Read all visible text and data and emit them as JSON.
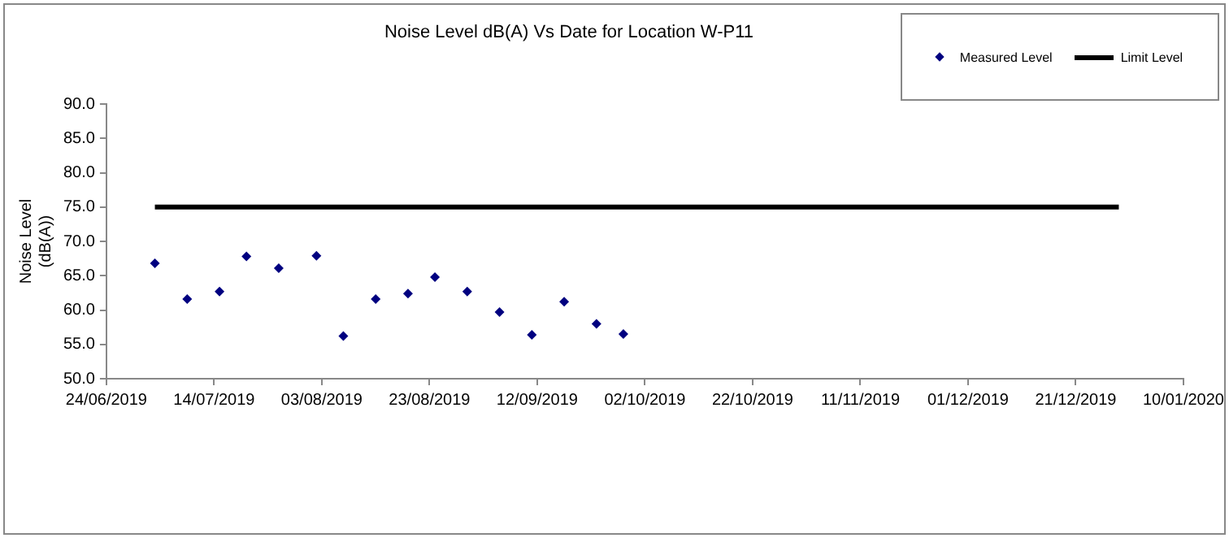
{
  "chart_data": {
    "type": "scatter",
    "title": "Noise Level dB(A) Vs Date for Location W-P11",
    "ylabel": "Noise Level (dB(A))",
    "xlim": [
      "2019-06-24",
      "2020-01-10"
    ],
    "xticks": [
      {
        "value": "2019-06-24",
        "label": "24/06/2019"
      },
      {
        "value": "2019-07-14",
        "label": "14/07/2019"
      },
      {
        "value": "2019-08-03",
        "label": "03/08/2019"
      },
      {
        "value": "2019-08-23",
        "label": "23/08/2019"
      },
      {
        "value": "2019-09-12",
        "label": "12/09/2019"
      },
      {
        "value": "2019-10-02",
        "label": "02/10/2019"
      },
      {
        "value": "2019-10-22",
        "label": "22/10/2019"
      },
      {
        "value": "2019-11-11",
        "label": "11/11/2019"
      },
      {
        "value": "2019-12-01",
        "label": "01/12/2019"
      },
      {
        "value": "2019-12-21",
        "label": "21/12/2019"
      },
      {
        "value": "2020-01-10",
        "label": "10/01/2020"
      }
    ],
    "ylim": [
      50,
      90
    ],
    "yticks": [
      {
        "value": 50,
        "label": "50.0"
      },
      {
        "value": 55,
        "label": "55.0"
      },
      {
        "value": 60,
        "label": "60.0"
      },
      {
        "value": 65,
        "label": "65.0"
      },
      {
        "value": 70,
        "label": "70.0"
      },
      {
        "value": 75,
        "label": "75.0"
      },
      {
        "value": 80,
        "label": "80.0"
      },
      {
        "value": 85,
        "label": "85.0"
      },
      {
        "value": 90,
        "label": "90.0"
      }
    ],
    "grid": false,
    "legend": "top right",
    "marker": "diamond",
    "series": [
      {
        "name": "Measured Level",
        "color": "#000080",
        "x": [
          "2019-07-03",
          "2019-07-09",
          "2019-07-15",
          "2019-07-20",
          "2019-07-26",
          "2019-08-02",
          "2019-08-07",
          "2019-08-13",
          "2019-08-19",
          "2019-08-24",
          "2019-08-30",
          "2019-09-05",
          "2019-09-11",
          "2019-09-17",
          "2019-09-23",
          "2019-09-28"
        ],
        "values": [
          66.8,
          61.6,
          62.7,
          67.8,
          66.1,
          67.9,
          56.2,
          61.6,
          62.4,
          64.8,
          62.7,
          59.7,
          56.4,
          61.2,
          58.0,
          56.5
        ]
      },
      {
        "name": "Limit Level",
        "type": "line",
        "color": "#000000",
        "x": [
          "2019-07-03",
          "2019-12-29"
        ],
        "values": [
          75,
          75
        ],
        "marker": "none",
        "line_style": "solid"
      }
    ]
  }
}
